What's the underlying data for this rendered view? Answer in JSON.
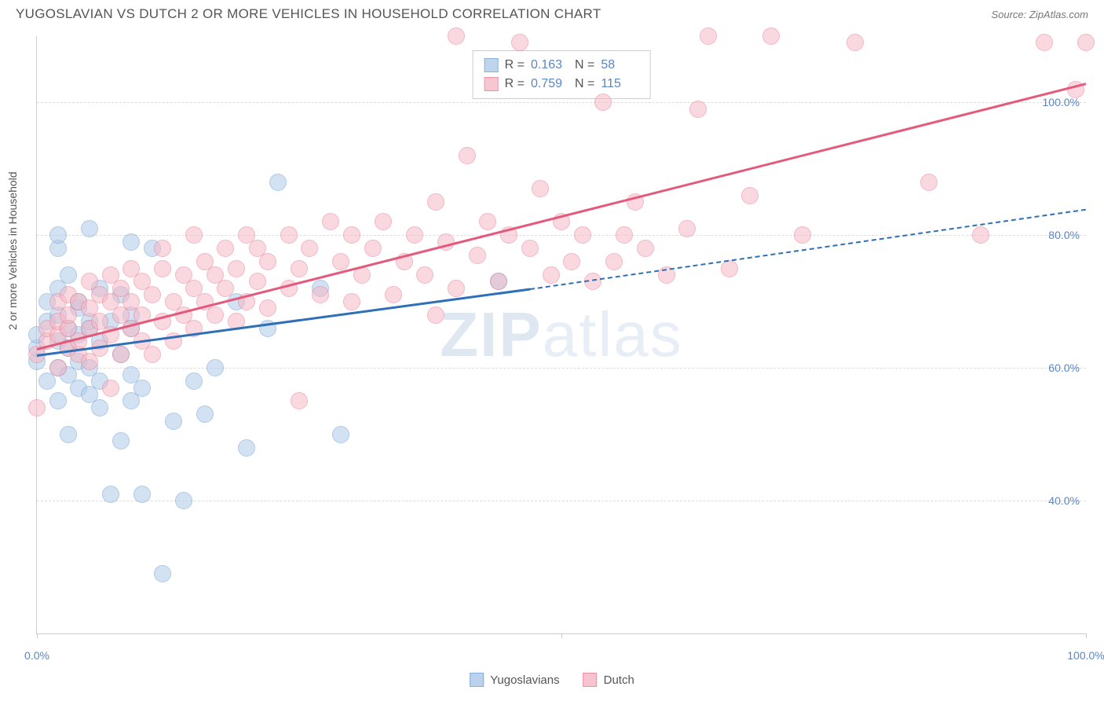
{
  "title": "YUGOSLAVIAN VS DUTCH 2 OR MORE VEHICLES IN HOUSEHOLD CORRELATION CHART",
  "source_label": "Source: ",
  "source": "ZipAtlas.com",
  "watermark_a": "ZIP",
  "watermark_b": "atlas",
  "chart": {
    "type": "scatter",
    "xlim": [
      0,
      100
    ],
    "ylim": [
      20,
      110
    ],
    "ylabel": "2 or more Vehicles in Household",
    "y_ticks": [
      40,
      60,
      80,
      100
    ],
    "y_tick_labels": [
      "40.0%",
      "60.0%",
      "80.0%",
      "100.0%"
    ],
    "x_axis_tick_positions": [
      0,
      50,
      100
    ],
    "x_end_labels": [
      "0.0%",
      "100.0%"
    ],
    "grid_color": "#dddddd",
    "background": "#ffffff",
    "point_radius": 10,
    "series": [
      {
        "name": "Yugoslavians",
        "fill": "#aecbe8",
        "fill_alpha": 0.55,
        "stroke": "#6f9fd3",
        "line_color": "#2f6fb7",
        "R": "0.163",
        "N": "58",
        "trend": {
          "x1": 0,
          "y1": 62,
          "x2": 47,
          "y2": 72,
          "style": "solid"
        },
        "trend_ext": {
          "x1": 47,
          "y1": 72,
          "x2": 100,
          "y2": 84,
          "style": "dashed"
        },
        "points": [
          [
            0,
            61
          ],
          [
            0,
            63
          ],
          [
            0,
            65
          ],
          [
            1,
            58
          ],
          [
            1,
            67
          ],
          [
            1,
            70
          ],
          [
            2,
            55
          ],
          [
            2,
            60
          ],
          [
            2,
            64
          ],
          [
            2,
            68
          ],
          [
            2,
            72
          ],
          [
            2,
            78
          ],
          [
            2,
            80
          ],
          [
            3,
            50
          ],
          [
            3,
            59
          ],
          [
            3,
            63
          ],
          [
            3,
            66
          ],
          [
            3,
            74
          ],
          [
            4,
            57
          ],
          [
            4,
            61
          ],
          [
            4,
            65
          ],
          [
            4,
            69
          ],
          [
            4,
            70
          ],
          [
            5,
            56
          ],
          [
            5,
            60
          ],
          [
            5,
            66
          ],
          [
            5,
            67
          ],
          [
            5,
            81
          ],
          [
            6,
            54
          ],
          [
            6,
            58
          ],
          [
            6,
            64
          ],
          [
            6,
            72
          ],
          [
            7,
            41
          ],
          [
            7,
            67
          ],
          [
            8,
            49
          ],
          [
            8,
            62
          ],
          [
            8,
            71
          ],
          [
            9,
            55
          ],
          [
            9,
            59
          ],
          [
            9,
            66
          ],
          [
            9,
            68
          ],
          [
            9,
            79
          ],
          [
            10,
            41
          ],
          [
            10,
            57
          ],
          [
            11,
            78
          ],
          [
            12,
            29
          ],
          [
            13,
            52
          ],
          [
            14,
            40
          ],
          [
            15,
            58
          ],
          [
            16,
            53
          ],
          [
            17,
            60
          ],
          [
            19,
            70
          ],
          [
            20,
            48
          ],
          [
            22,
            66
          ],
          [
            23,
            88
          ],
          [
            27,
            72
          ],
          [
            29,
            50
          ],
          [
            44,
            73
          ]
        ]
      },
      {
        "name": "Dutch",
        "fill": "#f6b9c6",
        "fill_alpha": 0.55,
        "stroke": "#e87d97",
        "line_color": "#e45a7d",
        "R": "0.759",
        "N": "115",
        "trend": {
          "x1": 0,
          "y1": 63,
          "x2": 100,
          "y2": 103,
          "style": "solid"
        },
        "points": [
          [
            0,
            54
          ],
          [
            0,
            62
          ],
          [
            1,
            64
          ],
          [
            1,
            66
          ],
          [
            2,
            60
          ],
          [
            2,
            65
          ],
          [
            2,
            67
          ],
          [
            2,
            70
          ],
          [
            3,
            63
          ],
          [
            3,
            66
          ],
          [
            3,
            68
          ],
          [
            3,
            71
          ],
          [
            4,
            62
          ],
          [
            4,
            64
          ],
          [
            4,
            70
          ],
          [
            5,
            61
          ],
          [
            5,
            66
          ],
          [
            5,
            69
          ],
          [
            5,
            73
          ],
          [
            6,
            63
          ],
          [
            6,
            67
          ],
          [
            6,
            71
          ],
          [
            7,
            57
          ],
          [
            7,
            65
          ],
          [
            7,
            70
          ],
          [
            7,
            74
          ],
          [
            8,
            62
          ],
          [
            8,
            68
          ],
          [
            8,
            72
          ],
          [
            9,
            66
          ],
          [
            9,
            70
          ],
          [
            9,
            75
          ],
          [
            10,
            64
          ],
          [
            10,
            68
          ],
          [
            10,
            73
          ],
          [
            11,
            62
          ],
          [
            11,
            71
          ],
          [
            12,
            67
          ],
          [
            12,
            75
          ],
          [
            12,
            78
          ],
          [
            13,
            64
          ],
          [
            13,
            70
          ],
          [
            14,
            68
          ],
          [
            14,
            74
          ],
          [
            15,
            66
          ],
          [
            15,
            72
          ],
          [
            15,
            80
          ],
          [
            16,
            70
          ],
          [
            16,
            76
          ],
          [
            17,
            68
          ],
          [
            17,
            74
          ],
          [
            18,
            72
          ],
          [
            18,
            78
          ],
          [
            19,
            67
          ],
          [
            19,
            75
          ],
          [
            20,
            70
          ],
          [
            20,
            80
          ],
          [
            21,
            73
          ],
          [
            21,
            78
          ],
          [
            22,
            69
          ],
          [
            22,
            76
          ],
          [
            24,
            72
          ],
          [
            24,
            80
          ],
          [
            25,
            55
          ],
          [
            25,
            75
          ],
          [
            26,
            78
          ],
          [
            27,
            71
          ],
          [
            28,
            82
          ],
          [
            29,
            76
          ],
          [
            30,
            70
          ],
          [
            30,
            80
          ],
          [
            31,
            74
          ],
          [
            32,
            78
          ],
          [
            33,
            82
          ],
          [
            34,
            71
          ],
          [
            35,
            76
          ],
          [
            36,
            80
          ],
          [
            37,
            74
          ],
          [
            38,
            68
          ],
          [
            38,
            85
          ],
          [
            39,
            79
          ],
          [
            40,
            72
          ],
          [
            40,
            110
          ],
          [
            41,
            92
          ],
          [
            42,
            77
          ],
          [
            43,
            82
          ],
          [
            44,
            73
          ],
          [
            45,
            80
          ],
          [
            46,
            109
          ],
          [
            47,
            78
          ],
          [
            48,
            87
          ],
          [
            49,
            74
          ],
          [
            50,
            82
          ],
          [
            51,
            76
          ],
          [
            52,
            80
          ],
          [
            53,
            73
          ],
          [
            54,
            100
          ],
          [
            55,
            76
          ],
          [
            56,
            80
          ],
          [
            57,
            85
          ],
          [
            58,
            78
          ],
          [
            60,
            74
          ],
          [
            62,
            81
          ],
          [
            63,
            99
          ],
          [
            64,
            110
          ],
          [
            66,
            75
          ],
          [
            68,
            86
          ],
          [
            70,
            110
          ],
          [
            73,
            80
          ],
          [
            78,
            109
          ],
          [
            85,
            88
          ],
          [
            90,
            80
          ],
          [
            96,
            109
          ],
          [
            99,
            102
          ],
          [
            100,
            109
          ]
        ]
      }
    ]
  },
  "legend": {
    "r_label": "R =",
    "n_label": "N ="
  }
}
